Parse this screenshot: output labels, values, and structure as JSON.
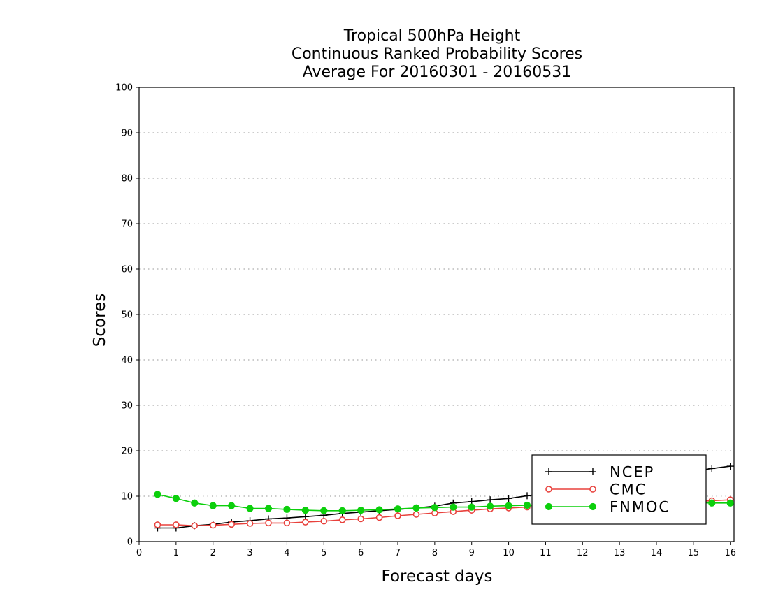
{
  "chart_data": {
    "type": "line",
    "title_lines": [
      "Tropical 500hPa Height",
      "Continuous Ranked Probability Scores",
      "Average For 20160301 - 20160531"
    ],
    "xlabel": "Forecast days",
    "ylabel": "Scores",
    "xlim": [
      0,
      16.1
    ],
    "ylim": [
      0,
      100
    ],
    "x_ticks": [
      "0",
      "1",
      "2",
      "3",
      "4",
      "5",
      "6",
      "7",
      "8",
      "9",
      "10",
      "11",
      "12",
      "13",
      "14",
      "15",
      "16"
    ],
    "y_ticks": [
      "0",
      "10",
      "20",
      "30",
      "40",
      "50",
      "60",
      "70",
      "80",
      "90",
      "100"
    ],
    "grid": "horizontal dotted",
    "legend_position": "bottom-right",
    "x": [
      0.5,
      1,
      1.5,
      2,
      2.5,
      3,
      3.5,
      4,
      4.5,
      5,
      5.5,
      6,
      6.5,
      7,
      7.5,
      8,
      8.5,
      9,
      9.5,
      10,
      10.5,
      11,
      11.5,
      12,
      12.5,
      13,
      13.5,
      14,
      14.5,
      15,
      15.5,
      16
    ],
    "series": [
      {
        "name": "NCEP",
        "color": "#000000",
        "marker": "plus",
        "values": [
          3.0,
          3.0,
          3.5,
          3.8,
          4.3,
          4.6,
          5.0,
          5.2,
          5.5,
          5.8,
          6.2,
          6.5,
          6.8,
          7.1,
          7.4,
          7.8,
          8.5,
          8.8,
          9.2,
          9.5,
          10.1,
          10.6,
          11.0,
          11.5,
          12.0,
          12.6,
          13.3,
          14.0,
          14.8,
          15.5,
          16.1,
          16.6
        ]
      },
      {
        "name": "CMC",
        "color": "#e8413c",
        "marker": "open-circle",
        "values": [
          3.7,
          3.7,
          3.5,
          3.6,
          3.8,
          4.0,
          4.1,
          4.1,
          4.3,
          4.5,
          4.8,
          5.0,
          5.3,
          5.7,
          6.0,
          6.3,
          6.6,
          6.9,
          7.2,
          7.4,
          7.6,
          7.8,
          8.0,
          8.1,
          8.2,
          8.4,
          8.5,
          8.6,
          8.7,
          8.8,
          9.0,
          9.2
        ]
      },
      {
        "name": "FNMOC",
        "color": "#0ccf0c",
        "marker": "filled-circle",
        "values": [
          10.4,
          9.5,
          8.5,
          7.9,
          7.9,
          7.3,
          7.3,
          7.1,
          6.9,
          6.8,
          6.8,
          6.9,
          7.0,
          7.2,
          7.4,
          7.5,
          7.6,
          7.6,
          7.8,
          7.9,
          8.0,
          8.1,
          8.2,
          8.3,
          8.3,
          8.4,
          8.4,
          8.5,
          8.5,
          8.6,
          8.5,
          8.5
        ]
      }
    ]
  }
}
